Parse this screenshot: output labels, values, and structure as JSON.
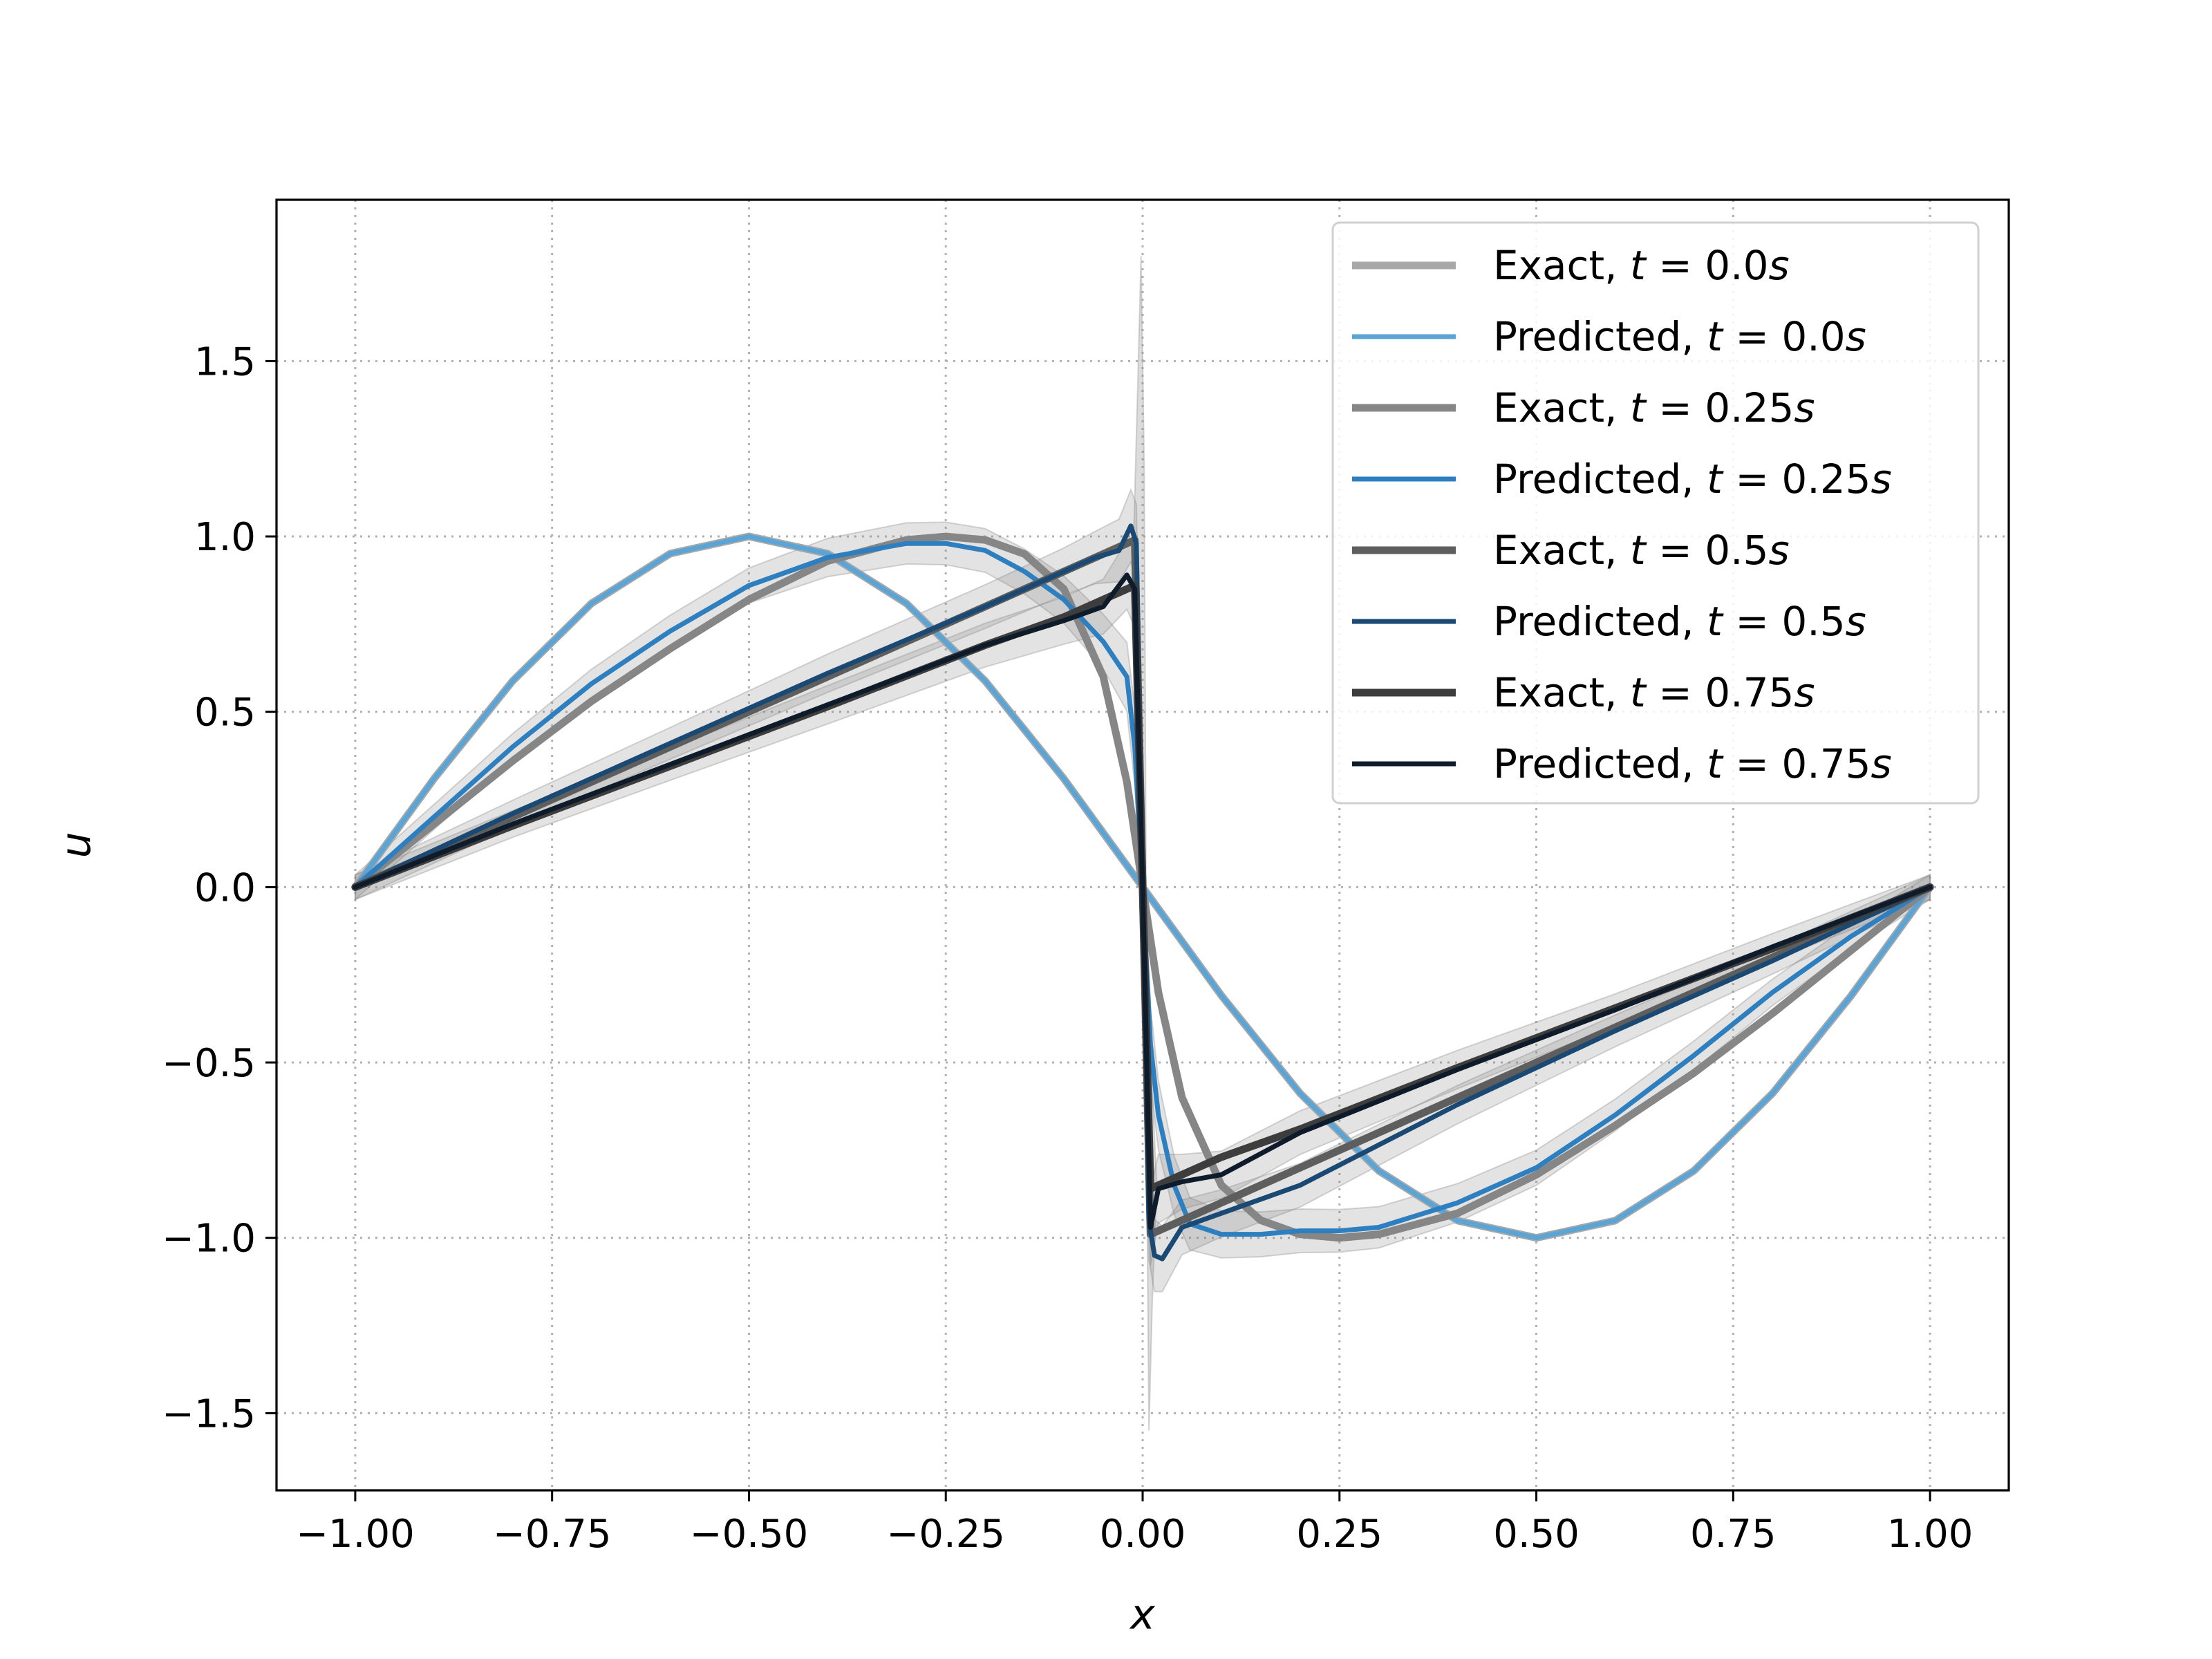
{
  "chart_data": {
    "type": "line",
    "xlabel": "x",
    "ylabel": "u",
    "xlim": [
      -1.1,
      1.1
    ],
    "ylim": [
      -1.72,
      1.96
    ],
    "xticks": [
      -1.0,
      -0.75,
      -0.5,
      -0.25,
      0.0,
      0.25,
      0.5,
      0.75,
      1.0
    ],
    "xtick_labels": [
      "−1.00",
      "−0.75",
      "−0.50",
      "−0.25",
      "0.00",
      "0.25",
      "0.50",
      "0.75",
      "1.00"
    ],
    "yticks": [
      -1.5,
      -1.0,
      -0.5,
      0.0,
      0.5,
      1.0,
      1.5
    ],
    "ytick_labels": [
      "−1.5",
      "−1.0",
      "−0.5",
      "0.0",
      "0.5",
      "1.0",
      "1.5"
    ],
    "grid": true,
    "grid_style": "dotted",
    "legend_position": "upper right",
    "series": [
      {
        "name": "Exact, t = 0.0s",
        "legend_prefix": "Exact,",
        "legend_t": "0.0",
        "color": "#a8a8a8",
        "kind": "exact",
        "x": [
          -1.0,
          -0.9,
          -0.8,
          -0.7,
          -0.6,
          -0.5,
          -0.4,
          -0.3,
          -0.2,
          -0.1,
          0.0,
          0.1,
          0.2,
          0.3,
          0.4,
          0.5,
          0.6,
          0.7,
          0.8,
          0.9,
          1.0
        ],
        "y": [
          0.0,
          0.309,
          0.588,
          0.809,
          0.951,
          1.0,
          0.951,
          0.809,
          0.588,
          0.309,
          0.0,
          -0.309,
          -0.588,
          -0.809,
          -0.951,
          -1.0,
          -0.951,
          -0.809,
          -0.588,
          -0.309,
          0.0
        ]
      },
      {
        "name": "Predicted, t = 0.0s",
        "legend_prefix": "Predicted,",
        "legend_t": "0.0",
        "color": "#5ba4d6",
        "kind": "predicted",
        "x": [
          -1.0,
          -0.9,
          -0.8,
          -0.7,
          -0.6,
          -0.5,
          -0.4,
          -0.3,
          -0.2,
          -0.1,
          0.0,
          0.1,
          0.2,
          0.3,
          0.4,
          0.5,
          0.6,
          0.7,
          0.8,
          0.9,
          1.0
        ],
        "y": [
          0.0,
          0.309,
          0.588,
          0.809,
          0.951,
          1.0,
          0.951,
          0.809,
          0.588,
          0.309,
          0.0,
          -0.309,
          -0.588,
          -0.809,
          -0.951,
          -1.0,
          -0.951,
          -0.809,
          -0.588,
          -0.309,
          0.0
        ]
      },
      {
        "name": "Exact, t = 0.25s",
        "legend_prefix": "Exact,",
        "legend_t": "0.25",
        "color": "#868686",
        "kind": "exact",
        "x": [
          -1.0,
          -0.9,
          -0.8,
          -0.7,
          -0.6,
          -0.5,
          -0.4,
          -0.3,
          -0.25,
          -0.2,
          -0.15,
          -0.1,
          -0.05,
          -0.02,
          0.0,
          0.02,
          0.05,
          0.1,
          0.15,
          0.2,
          0.25,
          0.3,
          0.4,
          0.5,
          0.6,
          0.7,
          0.8,
          0.9,
          1.0
        ],
        "y": [
          0.0,
          0.18,
          0.36,
          0.53,
          0.68,
          0.82,
          0.93,
          0.99,
          1.0,
          0.99,
          0.95,
          0.85,
          0.6,
          0.3,
          0.0,
          -0.3,
          -0.6,
          -0.85,
          -0.95,
          -0.99,
          -1.0,
          -0.99,
          -0.93,
          -0.82,
          -0.68,
          -0.53,
          -0.36,
          -0.18,
          0.0
        ]
      },
      {
        "name": "Predicted, t = 0.25s",
        "legend_prefix": "Predicted,",
        "legend_t": "0.25",
        "color": "#2d7fbf",
        "kind": "predicted",
        "x": [
          -1.0,
          -0.9,
          -0.8,
          -0.7,
          -0.6,
          -0.5,
          -0.4,
          -0.3,
          -0.25,
          -0.2,
          -0.15,
          -0.1,
          -0.05,
          -0.02,
          -0.01,
          0.0,
          0.01,
          0.02,
          0.04,
          0.06,
          0.1,
          0.15,
          0.2,
          0.25,
          0.3,
          0.4,
          0.5,
          0.6,
          0.7,
          0.8,
          0.9,
          1.0
        ],
        "y": [
          0.0,
          0.2,
          0.4,
          0.58,
          0.73,
          0.86,
          0.94,
          0.98,
          0.98,
          0.96,
          0.9,
          0.82,
          0.7,
          0.6,
          0.4,
          0.0,
          -0.45,
          -0.65,
          -0.85,
          -0.96,
          -0.99,
          -0.99,
          -0.98,
          -0.98,
          -0.97,
          -0.9,
          -0.8,
          -0.65,
          -0.48,
          -0.3,
          -0.14,
          0.0
        ]
      },
      {
        "name": "Exact, t = 0.5s",
        "legend_prefix": "Exact,",
        "legend_t": "0.5",
        "color": "#5e5e5e",
        "kind": "exact",
        "x": [
          -1.0,
          -0.8,
          -0.6,
          -0.4,
          -0.2,
          -0.1,
          -0.05,
          -0.01,
          0.0,
          0.01,
          0.05,
          0.1,
          0.2,
          0.4,
          0.6,
          0.8,
          1.0
        ],
        "y": [
          0.0,
          0.2,
          0.4,
          0.6,
          0.8,
          0.9,
          0.95,
          0.99,
          0.0,
          -0.99,
          -0.95,
          -0.9,
          -0.8,
          -0.6,
          -0.4,
          -0.2,
          0.0
        ]
      },
      {
        "name": "Predicted, t = 0.5s",
        "legend_prefix": "Predicted,",
        "legend_t": "0.5",
        "color": "#1a4a73",
        "kind": "predicted",
        "x": [
          -1.0,
          -0.8,
          -0.6,
          -0.4,
          -0.2,
          -0.1,
          -0.06,
          -0.03,
          -0.015,
          -0.008,
          0.0,
          0.008,
          0.015,
          0.025,
          0.05,
          0.1,
          0.2,
          0.4,
          0.6,
          0.8,
          1.0
        ],
        "y": [
          0.0,
          0.21,
          0.41,
          0.61,
          0.8,
          0.9,
          0.94,
          0.96,
          1.03,
          0.98,
          0.0,
          -0.95,
          -1.05,
          -1.06,
          -0.97,
          -0.93,
          -0.85,
          -0.62,
          -0.41,
          -0.21,
          0.0
        ]
      },
      {
        "name": "Exact, t = 0.75s",
        "legend_prefix": "Exact,",
        "legend_t": "0.75",
        "color": "#3d3d3d",
        "kind": "exact",
        "x": [
          -1.0,
          -0.8,
          -0.6,
          -0.4,
          -0.2,
          -0.1,
          -0.01,
          0.0,
          0.01,
          0.1,
          0.2,
          0.4,
          0.6,
          0.8,
          1.0
        ],
        "y": [
          0.0,
          0.175,
          0.345,
          0.515,
          0.69,
          0.77,
          0.86,
          0.0,
          -0.86,
          -0.77,
          -0.69,
          -0.515,
          -0.345,
          -0.175,
          0.0
        ]
      },
      {
        "name": "Predicted, t = 0.75s",
        "legend_prefix": "Predicted,",
        "legend_t": "0.75",
        "color": "#0d1b2a",
        "kind": "predicted",
        "x": [
          -1.0,
          -0.8,
          -0.6,
          -0.4,
          -0.2,
          -0.1,
          -0.05,
          -0.02,
          -0.01,
          0.0,
          0.01,
          0.02,
          0.05,
          0.1,
          0.2,
          0.4,
          0.6,
          0.8,
          1.0
        ],
        "y": [
          0.0,
          0.18,
          0.35,
          0.52,
          0.69,
          0.76,
          0.8,
          0.89,
          0.85,
          0.0,
          -0.97,
          -0.86,
          -0.84,
          -0.82,
          -0.7,
          -0.52,
          -0.35,
          -0.17,
          0.0
        ]
      }
    ]
  }
}
